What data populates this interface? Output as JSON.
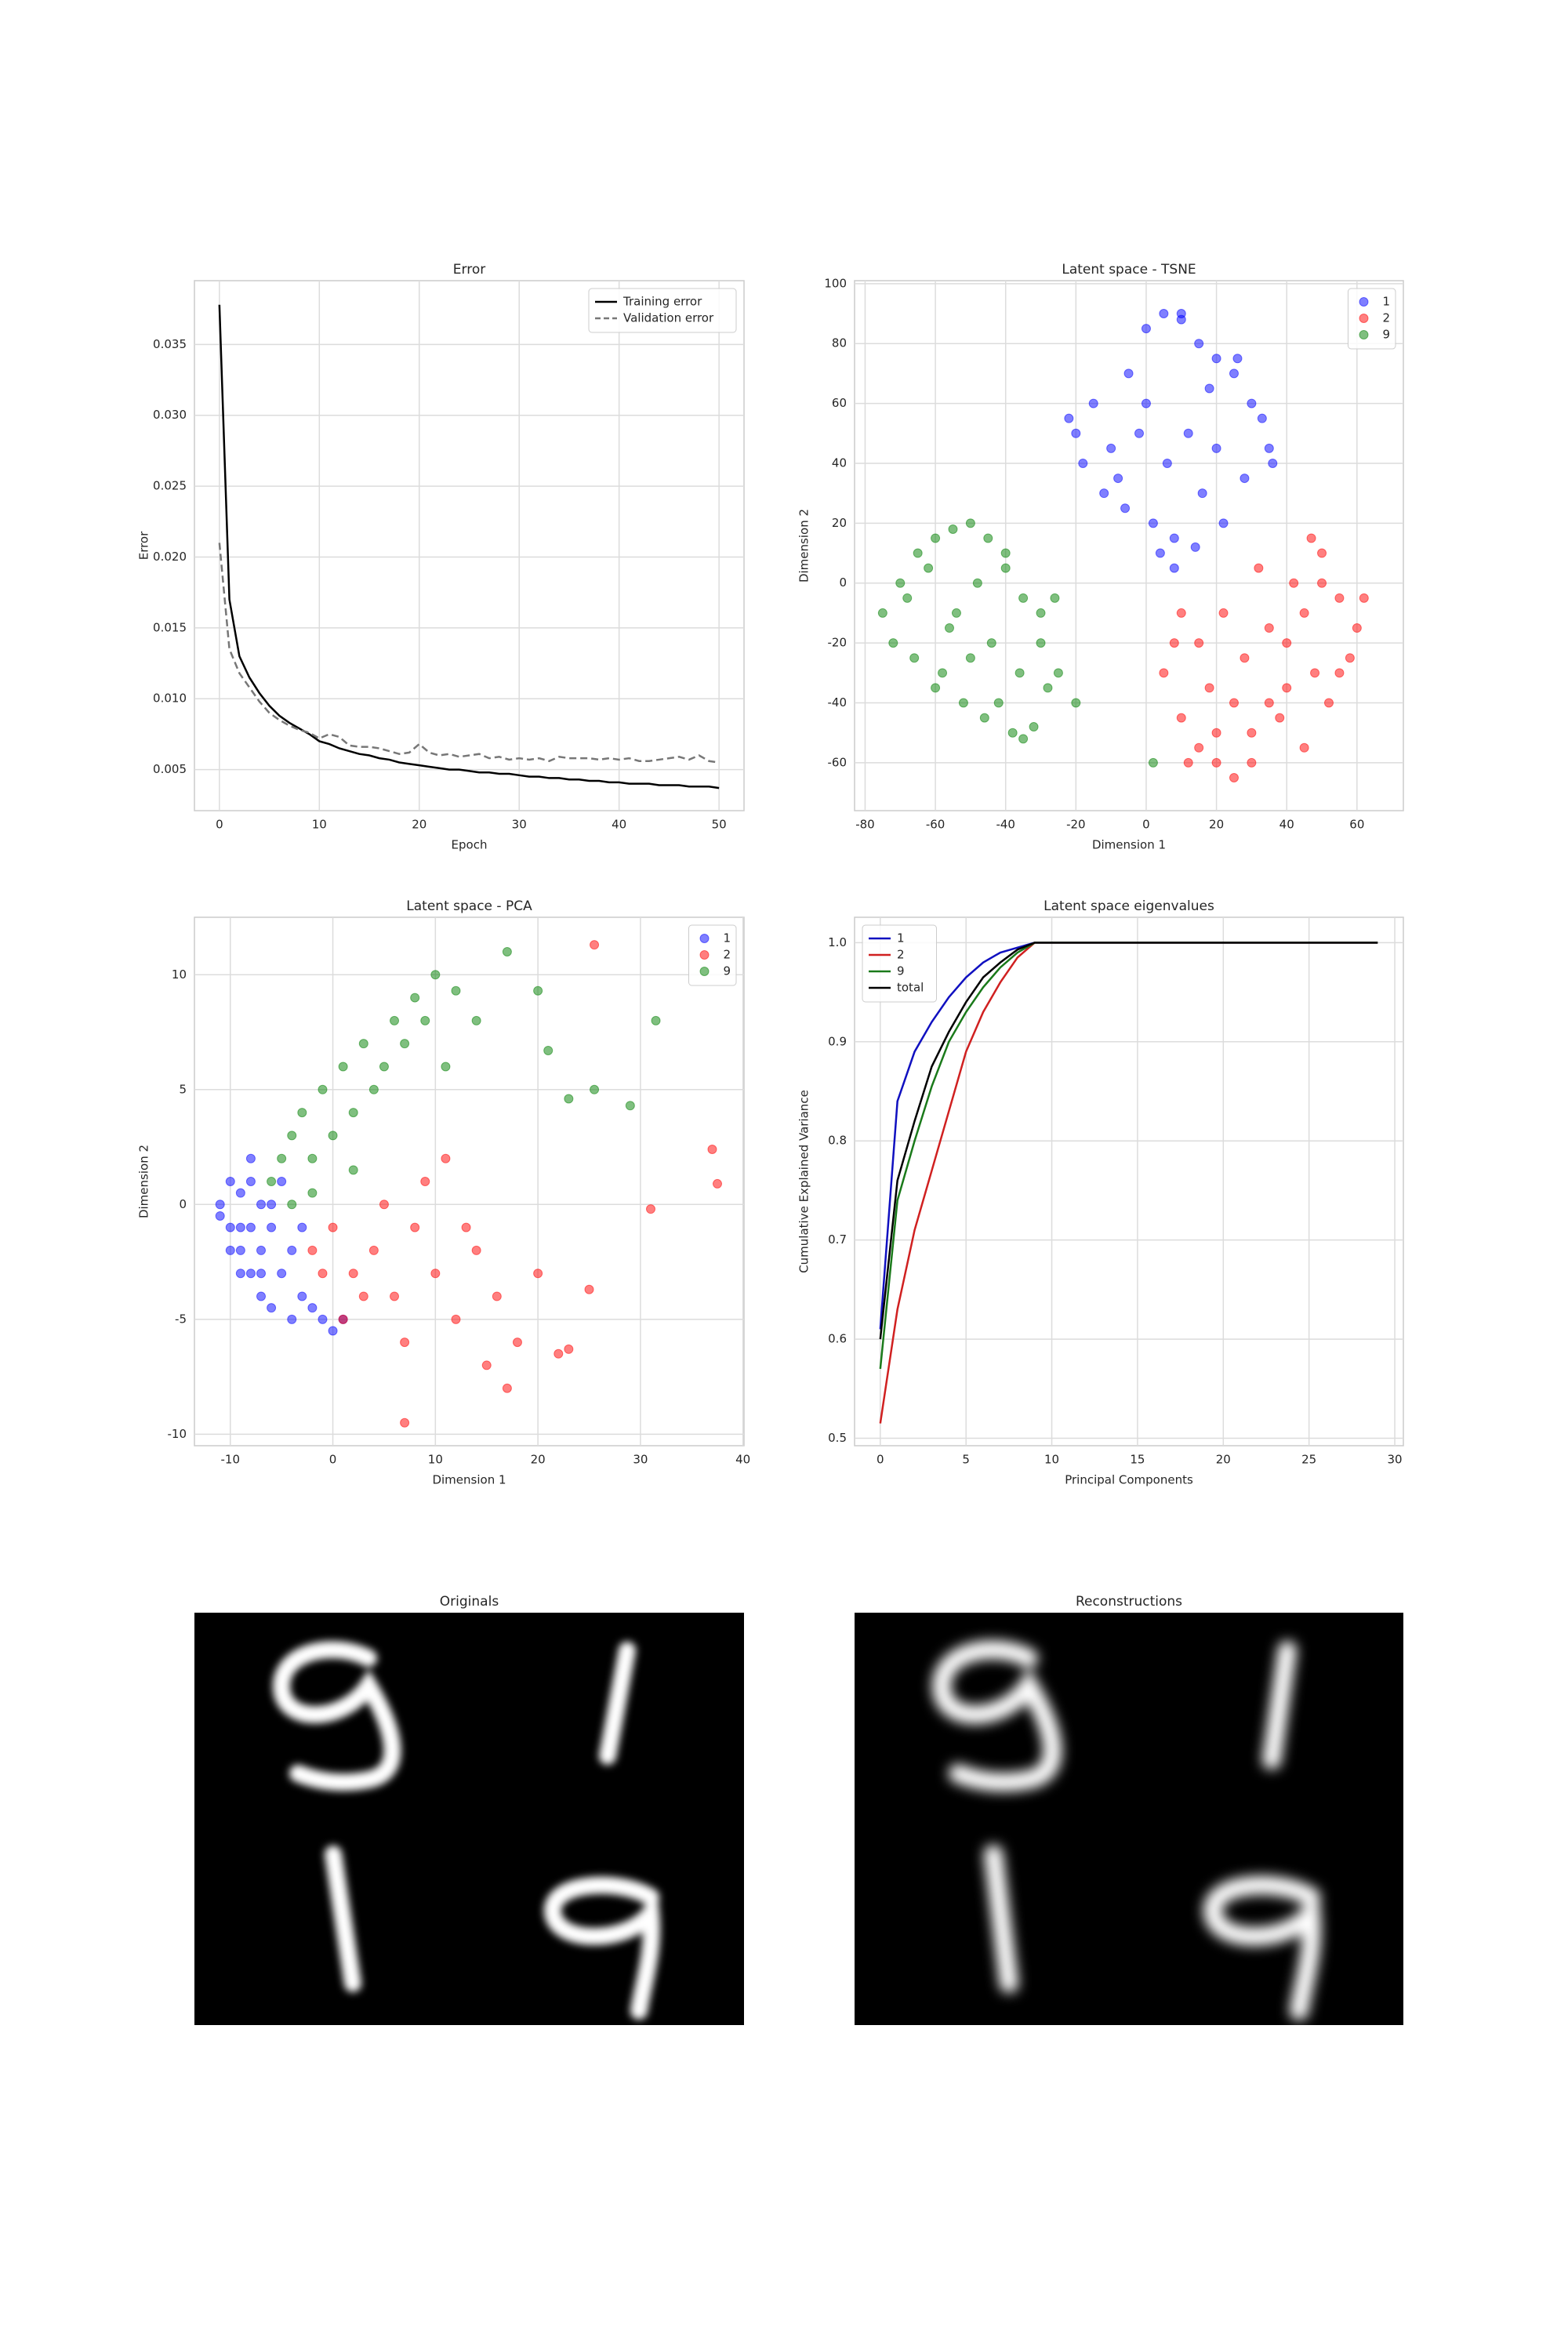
{
  "chart_data": [
    {
      "type": "line",
      "title": "Error",
      "xlabel": "Epoch",
      "ylabel": "Error",
      "xlim": [
        -2.5,
        52.5
      ],
      "xticks": [
        0,
        10,
        20,
        30,
        40,
        50
      ],
      "ylim": [
        0.0021,
        0.0395
      ],
      "yticks": [
        0.005,
        {
          "value": 0.01,
          "label": "0.010"
        },
        0.015,
        {
          "value": 0.02,
          "label": "0.020"
        },
        0.025,
        {
          "value": 0.03,
          "label": "0.030"
        },
        0.035
      ],
      "grid": true,
      "legend": "upper right",
      "series": [
        {
          "name": "Training error",
          "color": "#000000",
          "dash": false,
          "values": [
            0.0378,
            0.017,
            0.013,
            0.0115,
            0.0104,
            0.0095,
            0.0088,
            0.0083,
            0.0079,
            0.0075,
            0.007,
            0.0068,
            0.0065,
            0.0063,
            0.0061,
            0.006,
            0.0058,
            0.0057,
            0.0055,
            0.0054,
            0.0053,
            0.0052,
            0.0051,
            0.005,
            0.005,
            0.0049,
            0.0048,
            0.0048,
            0.0047,
            0.0047,
            0.0046,
            0.0045,
            0.0045,
            0.0044,
            0.0044,
            0.0043,
            0.0043,
            0.0042,
            0.0042,
            0.0041,
            0.0041,
            0.004,
            0.004,
            0.004,
            0.0039,
            0.0039,
            0.0039,
            0.0038,
            0.0038,
            0.0038,
            0.0037
          ]
        },
        {
          "name": "Validation error",
          "color": "#777777",
          "dash": true,
          "values": [
            0.021,
            0.0135,
            0.0118,
            0.0108,
            0.0098,
            0.009,
            0.0085,
            0.0081,
            0.0078,
            0.0076,
            0.0072,
            0.0075,
            0.0073,
            0.0067,
            0.0066,
            0.0066,
            0.0065,
            0.0063,
            0.0061,
            0.0062,
            0.0068,
            0.0062,
            0.006,
            0.0061,
            0.0059,
            0.006,
            0.0061,
            0.0058,
            0.0059,
            0.0057,
            0.0058,
            0.0057,
            0.0058,
            0.0056,
            0.0059,
            0.0058,
            0.0058,
            0.0058,
            0.0057,
            0.0058,
            0.0057,
            0.0058,
            0.0056,
            0.0056,
            0.0057,
            0.0058,
            0.0059,
            0.0057,
            0.006,
            0.0056,
            0.0055
          ]
        }
      ]
    },
    {
      "type": "scatter",
      "title": "Latent space - TSNE",
      "xlabel": "Dimension 1",
      "ylabel": "Dimension 2",
      "xlim": [
        -83,
        73.2
      ],
      "xticks": [
        -80,
        -60,
        -40,
        -20,
        0,
        20,
        40,
        60
      ],
      "ylim": [
        -76,
        101
      ],
      "yticks": [
        -60,
        -40,
        -20,
        0,
        20,
        40,
        60,
        80,
        100
      ],
      "grid": true,
      "legend": "upper right",
      "alpha": 0.5,
      "series": [
        {
          "name": "1",
          "color": "#0000ff",
          "x": [
            -20,
            -15,
            -10,
            -5,
            0,
            5,
            10,
            15,
            20,
            25,
            30,
            35,
            -18,
            -12,
            -6,
            2,
            8,
            14,
            22,
            28,
            33,
            -22,
            -8,
            4,
            12,
            18,
            26,
            0,
            6,
            16,
            10,
            -2,
            20,
            36,
            8
          ],
          "y": [
            50,
            60,
            45,
            70,
            85,
            90,
            88,
            80,
            75,
            70,
            60,
            45,
            40,
            30,
            25,
            20,
            15,
            12,
            20,
            35,
            55,
            55,
            35,
            10,
            50,
            65,
            75,
            60,
            40,
            30,
            90,
            50,
            45,
            40,
            5
          ]
        },
        {
          "name": "2",
          "color": "#ff0000",
          "x": [
            5,
            10,
            15,
            20,
            25,
            30,
            35,
            40,
            45,
            50,
            55,
            60,
            62,
            8,
            12,
            18,
            28,
            38,
            48,
            58,
            22,
            32,
            42,
            52,
            15,
            25,
            35,
            45,
            55,
            30,
            40,
            50,
            20,
            10,
            47
          ],
          "y": [
            -30,
            -45,
            -55,
            -60,
            -65,
            -50,
            -40,
            -20,
            -10,
            0,
            -5,
            -15,
            -5,
            -20,
            -60,
            -35,
            -25,
            -45,
            -30,
            -25,
            -10,
            5,
            0,
            -40,
            -20,
            -40,
            -15,
            -55,
            -30,
            -60,
            -35,
            10,
            -50,
            -10,
            15
          ]
        },
        {
          "name": "9",
          "color": "#008000",
          "x": [
            -75,
            -70,
            -65,
            -60,
            -55,
            -50,
            -45,
            -40,
            -35,
            -30,
            -25,
            -20,
            -72,
            -66,
            -58,
            -52,
            -46,
            -38,
            -32,
            -28,
            -62,
            -54,
            -44,
            -36,
            -48,
            -56,
            -42,
            -68,
            -40,
            -30,
            -50,
            -60,
            -35,
            -26,
            2
          ],
          "y": [
            -10,
            0,
            10,
            15,
            18,
            20,
            15,
            5,
            -5,
            -20,
            -30,
            -40,
            -20,
            -25,
            -30,
            -40,
            -45,
            -50,
            -48,
            -35,
            5,
            -10,
            -20,
            -30,
            0,
            -15,
            -40,
            -5,
            10,
            -10,
            -25,
            -35,
            -52,
            -5,
            -60
          ]
        }
      ]
    },
    {
      "type": "scatter",
      "title": "Latent space - PCA",
      "xlabel": "Dimension 1",
      "ylabel": "Dimension 2",
      "xlim": [
        -13.5,
        40.1
      ],
      "xticks": [
        -10,
        0,
        10,
        20,
        30,
        40
      ],
      "ylim": [
        -10.5,
        12.5
      ],
      "yticks": [
        -10,
        -5,
        0,
        5,
        10
      ],
      "grid": true,
      "legend": "upper right",
      "alpha": 0.5,
      "series": [
        {
          "name": "1",
          "color": "#0000ff",
          "x": [
            -11,
            -10,
            -10,
            -9,
            -9,
            -8,
            -8,
            -7,
            -7,
            -6,
            -6,
            -5,
            -5,
            -4,
            -4,
            -3,
            -3,
            -2,
            -1,
            0,
            1,
            -11,
            -10,
            -9,
            -8,
            -7,
            -6,
            -9,
            -8,
            -7
          ],
          "y": [
            0,
            -1,
            1,
            -2,
            0.5,
            -3,
            1,
            -4,
            0,
            -4.5,
            -1,
            -3,
            1,
            -5,
            -2,
            -4,
            -1,
            -4.5,
            -5,
            -5.5,
            -5,
            -0.5,
            -2,
            -1,
            2,
            -3,
            0,
            -3,
            -1,
            -2
          ]
        },
        {
          "name": "2",
          "color": "#ff0000",
          "x": [
            -2,
            0,
            2,
            4,
            6,
            8,
            10,
            12,
            14,
            16,
            18,
            20,
            22,
            25,
            5,
            7,
            9,
            3,
            1,
            11,
            13,
            15,
            37,
            37.5,
            31,
            25.5,
            7,
            23,
            17,
            -1
          ],
          "y": [
            -2,
            -1,
            -3,
            -2,
            -4,
            -1,
            -3,
            -5,
            -2,
            -4,
            -6,
            -3,
            -6.5,
            -3.7,
            0,
            -6,
            1,
            -4,
            -5,
            2,
            -1,
            -7,
            2.4,
            0.9,
            -0.2,
            11.3,
            -9.5,
            -6.3,
            -8,
            -3
          ]
        },
        {
          "name": "9",
          "color": "#008000",
          "x": [
            -6,
            -5,
            -4,
            -3,
            -2,
            -1,
            0,
            1,
            2,
            3,
            4,
            5,
            6,
            7,
            8,
            9,
            10,
            11,
            12,
            14,
            17,
            20,
            21,
            23,
            25.5,
            29,
            31.5,
            -4,
            -2,
            2
          ],
          "y": [
            1,
            2,
            3,
            4,
            2,
            5,
            3,
            6,
            4,
            7,
            5,
            6,
            8,
            7,
            9,
            8,
            10,
            6,
            9.3,
            8,
            11,
            9.3,
            6.7,
            4.6,
            5,
            4.3,
            8,
            0,
            0.5,
            1.5
          ]
        }
      ]
    },
    {
      "type": "line",
      "title": "Latent space eigenvalues",
      "xlabel": "Principal Components",
      "ylabel": "Cumulative Explained Variance",
      "xlim": [
        -1.5,
        30.5
      ],
      "xticks": [
        0,
        5,
        10,
        15,
        20,
        25,
        30
      ],
      "ylim": [
        0.4925,
        1.0256
      ],
      "yticks": [
        0.5,
        0.6,
        0.7,
        0.8,
        0.9,
        {
          "value": 1,
          "label": "1.0"
        }
      ],
      "grid": true,
      "legend": "upper left",
      "x": [
        0,
        1,
        2,
        3,
        4,
        5,
        6,
        7,
        8,
        9,
        10,
        11,
        12,
        13,
        14,
        15,
        16,
        17,
        18,
        19,
        20,
        21,
        22,
        23,
        24,
        25,
        26,
        27,
        28,
        29
      ],
      "series": [
        {
          "name": "1",
          "color": "#1010c0",
          "dash": false,
          "values": [
            0.61,
            0.84,
            0.89,
            0.92,
            0.945,
            0.965,
            0.98,
            0.99,
            0.995,
            1,
            1,
            1,
            1,
            1,
            1,
            1,
            1,
            1,
            1,
            1,
            1,
            1,
            1,
            1,
            1,
            1,
            1,
            1,
            1,
            1
          ]
        },
        {
          "name": "2",
          "color": "#d02020",
          "dash": false,
          "values": [
            0.515,
            0.63,
            0.71,
            0.77,
            0.83,
            0.89,
            0.93,
            0.96,
            0.985,
            1,
            1,
            1,
            1,
            1,
            1,
            1,
            1,
            1,
            1,
            1,
            1,
            1,
            1,
            1,
            1,
            1,
            1,
            1,
            1,
            1
          ]
        },
        {
          "name": "9",
          "color": "#1a7a1a",
          "dash": false,
          "values": [
            0.57,
            0.74,
            0.8,
            0.855,
            0.9,
            0.93,
            0.955,
            0.975,
            0.99,
            1,
            1,
            1,
            1,
            1,
            1,
            1,
            1,
            1,
            1,
            1,
            1,
            1,
            1,
            1,
            1,
            1,
            1,
            1,
            1,
            1
          ]
        },
        {
          "name": "total",
          "color": "#000000",
          "dash": false,
          "values": [
            0.6,
            0.76,
            0.82,
            0.875,
            0.91,
            0.94,
            0.965,
            0.98,
            0.993,
            1,
            1,
            1,
            1,
            1,
            1,
            1,
            1,
            1,
            1,
            1,
            1,
            1,
            1,
            1,
            1,
            1,
            1,
            1,
            1,
            1
          ]
        }
      ]
    },
    {
      "type": "image",
      "title": "Originals"
    },
    {
      "type": "image",
      "title": "Reconstructions"
    }
  ]
}
